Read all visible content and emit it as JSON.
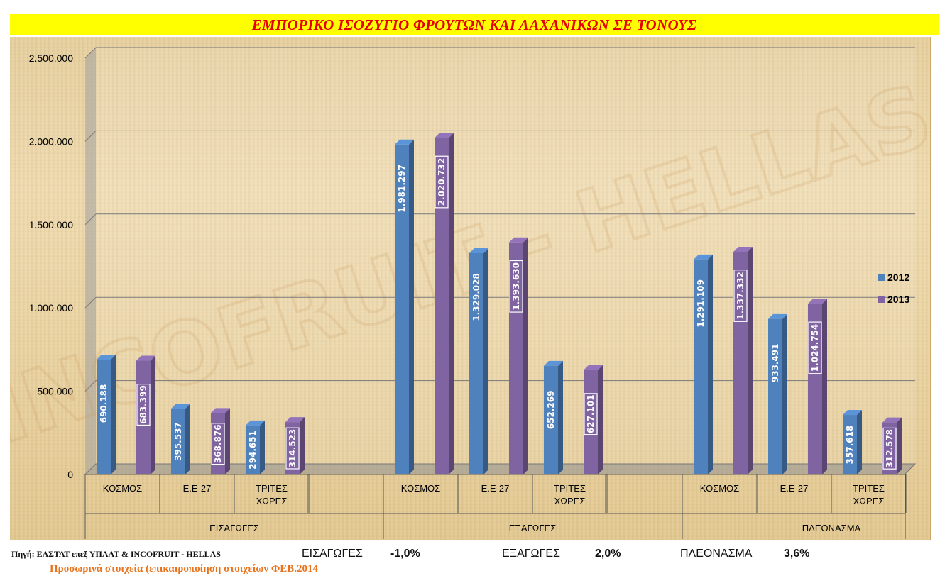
{
  "title": "ΕΜΠΟΡΙΚΟ ΙΣΟΖΥΓΙΟ ΦΡΟΥΤΩΝ ΚΑΙ ΛΑΧΑΝΙΚΩΝ ΣΕ ΤΟΝΟΥΣ",
  "watermark": "INCOFRUIT - HELLAS",
  "footer": {
    "source": "Πηγή: ΕΛΣΤΑΤ επεξ ΥΠΑΑΤ & INCOFRUIT - HELLAS",
    "provisional": "Προσωρινά στοιχεία (επικαιροποίηση στοιχείων ΦΕΒ.2014",
    "summary": [
      {
        "label": "ΕΙΣΑΓΩΓΕΣ",
        "value": "-1,0%"
      },
      {
        "label": "ΕΞΑΓΩΓΕΣ",
        "value": "2,0%"
      },
      {
        "label": "ΠΛΕΟΝΑΣΜΑ",
        "value": "3,6%"
      }
    ]
  },
  "colors": {
    "2012": "#4f81bd",
    "2013": "#8064a2",
    "title_bg": "#ffff00",
    "title_text": "#e60000"
  },
  "chart_data": {
    "type": "bar",
    "title": "ΕΜΠΟΡΙΚΟ ΙΣΟΖΥΓΙΟ ΦΡΟΥΤΩΝ ΚΑΙ ΛΑΧΑΝΙΚΩΝ ΣΕ ΤΟΝΟΥΣ",
    "groups": [
      {
        "name": "ΕΙΣΑΓΩΓΕΣ",
        "categories": [
          "ΚΟΣΜΟΣ",
          "Ε.Ε-27",
          "ΤΡΙΤΕΣ ΧΩΡΕΣ"
        ]
      },
      {
        "name": "ΕΞΑΓΩΓΕΣ",
        "categories": [
          "ΚΟΣΜΟΣ",
          "Ε.Ε-27",
          "ΤΡΙΤΕΣ ΧΩΡΕΣ"
        ]
      },
      {
        "name": "ΠΛΕΟΝΑΣΜΑ",
        "categories": [
          "ΚΟΣΜΟΣ",
          "Ε.Ε-27",
          "ΤΡΙΤΕΣ ΧΩΡΕΣ"
        ]
      }
    ],
    "series": [
      {
        "name": "2012",
        "values": [
          690188,
          395537,
          294651,
          1981297,
          1329028,
          652269,
          1291109,
          933491,
          357618
        ],
        "labels": [
          "690.188",
          "395.537",
          "294.651",
          "1.981.297",
          "1.329.028",
          "652.269",
          "1.291.109",
          "933.491",
          "357.618"
        ]
      },
      {
        "name": "2013",
        "values": [
          683399,
          368876,
          314523,
          2020732,
          1393630,
          627101,
          1337332,
          1024754,
          312578
        ],
        "labels": [
          "683.399",
          "368.876",
          "314.523",
          "2.020.732",
          "1.393.630",
          "627.101",
          "1.337.332",
          "1.024.754",
          "312.578"
        ]
      }
    ],
    "ylim": [
      0,
      2500000
    ],
    "yticks": [
      0,
      500000,
      1000000,
      1500000,
      2000000,
      2500000
    ],
    "ytick_labels": [
      "0",
      "500.000",
      "1.000.000",
      "1.500.000",
      "2.000.000",
      "2.500.000"
    ],
    "grid": true,
    "legend_position": "right"
  }
}
